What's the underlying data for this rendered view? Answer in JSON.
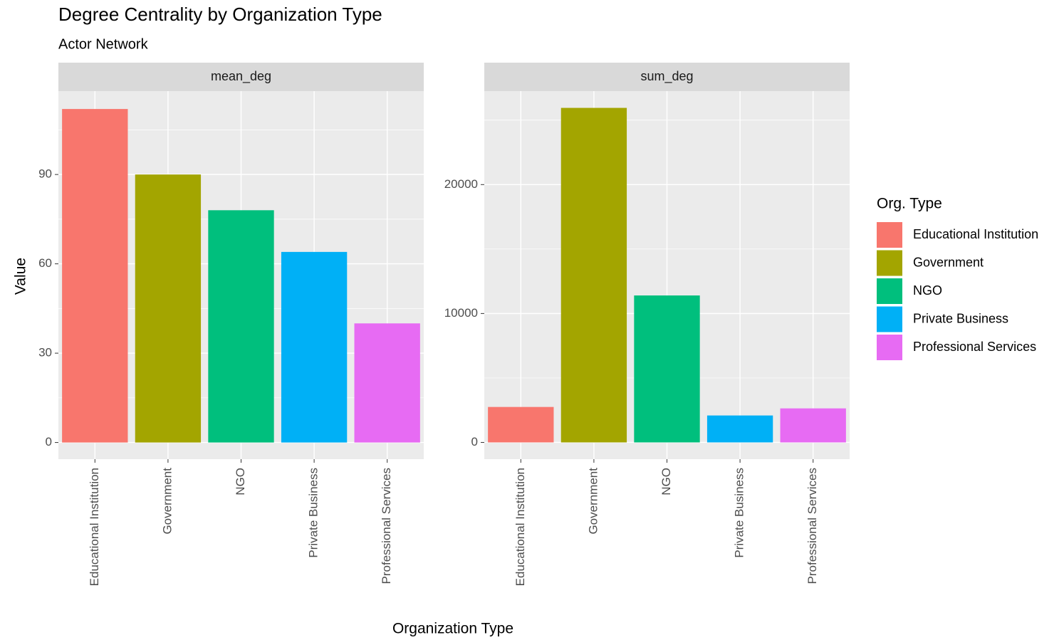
{
  "chart_data": {
    "type": "bar",
    "title": "Degree Centrality by Organization Type",
    "subtitle": "Actor Network",
    "x_label": "Organization Type",
    "y_label": "Value",
    "legend_title": "Org. Type",
    "categories": [
      "Educational Institution",
      "Government",
      "NGO",
      "Private Business",
      "Professional Services"
    ],
    "colors": [
      "#F8766D",
      "#A3A500",
      "#00BF7D",
      "#00B0F6",
      "#E76BF3"
    ],
    "grid": true,
    "facets": [
      {
        "name": "mean_deg",
        "values": [
          112,
          90,
          78,
          64,
          40
        ],
        "ylim": [
          -5.6,
          118
        ],
        "yticks": [
          0,
          30,
          60,
          90
        ]
      },
      {
        "name": "sum_deg",
        "values": [
          2750,
          25950,
          11400,
          2090,
          2640
        ],
        "ylim": [
          -1300,
          27250
        ],
        "yticks": [
          0,
          10000,
          20000
        ]
      }
    ]
  }
}
